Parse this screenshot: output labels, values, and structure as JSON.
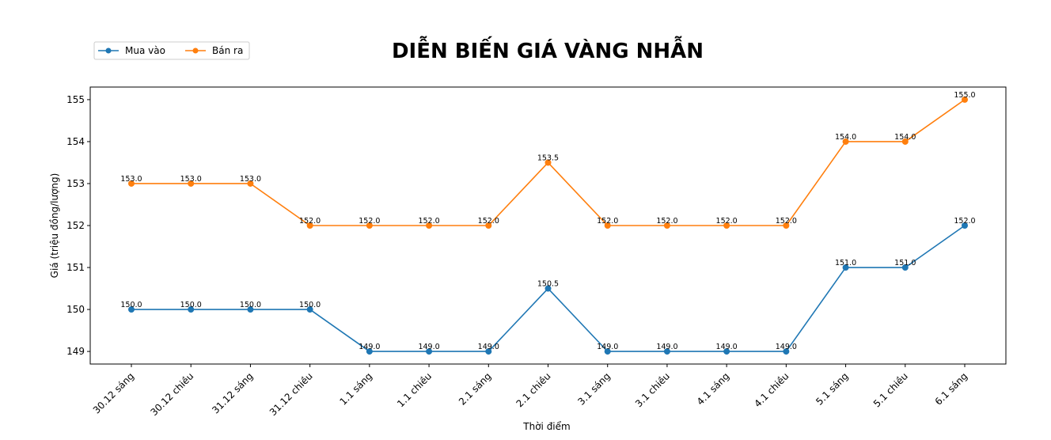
{
  "chart_data": {
    "type": "line",
    "title": "DIỄN BIẾN GIÁ VÀNG NHẪN",
    "xlabel": "Thời điểm",
    "ylabel": "Giá (triệu đồng/lượng)",
    "categories": [
      "30.12 sáng",
      "30.12 chiều",
      "31.12 sáng",
      "31.12 chiều",
      "1.1 sáng",
      "1.1 chiều",
      "2.1 sáng",
      "2.1 chiều",
      "3.1 sáng",
      "3.1 chiều",
      "4.1 sáng",
      "4.1 chiều",
      "5.1 sáng",
      "5.1 chiều",
      "6.1 sáng"
    ],
    "series": [
      {
        "name": "Mua vào",
        "color": "#1f77b4",
        "values": [
          150.0,
          150.0,
          150.0,
          150.0,
          149.0,
          149.0,
          149.0,
          150.5,
          149.0,
          149.0,
          149.0,
          149.0,
          151.0,
          151.0,
          152.0
        ]
      },
      {
        "name": "Bán ra",
        "color": "#ff7f0e",
        "values": [
          153.0,
          153.0,
          153.0,
          152.0,
          152.0,
          152.0,
          152.0,
          153.5,
          152.0,
          152.0,
          152.0,
          152.0,
          154.0,
          154.0,
          155.0
        ]
      }
    ],
    "yticks": [
      149,
      150,
      151,
      152,
      153,
      154,
      155
    ],
    "ylim": [
      148.7,
      155.3
    ],
    "grid": false,
    "legend_position": "top-left",
    "data_labels": true,
    "label_format": "one-decimal",
    "marker": "circle"
  }
}
